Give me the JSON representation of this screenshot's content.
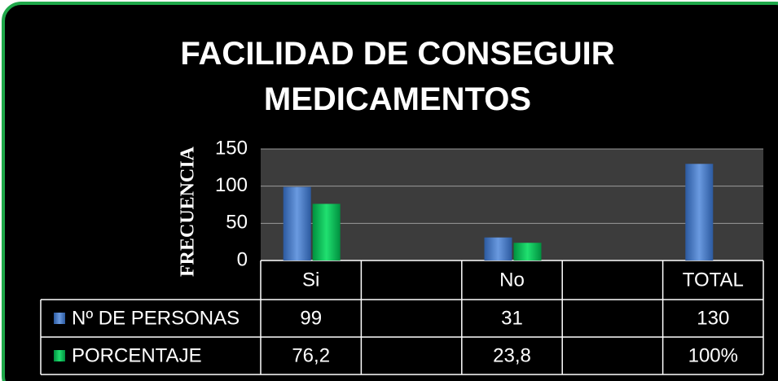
{
  "chart_data": {
    "type": "bar",
    "title": "FACILIDAD DE CONSEGUIR MEDICAMENTOS",
    "y_label": "FRECUENCIA",
    "categories": [
      "Si",
      null,
      "No",
      null,
      "TOTAL"
    ],
    "series": [
      {
        "name": "Nº DE PERSONAS",
        "color": "#4f81bd",
        "values": [
          99,
          null,
          31,
          null,
          130
        ]
      },
      {
        "name": "PORCENTAJE",
        "color": "#00b050",
        "values": [
          76.2,
          null,
          23.8,
          null,
          null
        ],
        "value_labels": [
          "76,2",
          null,
          "23,8",
          null,
          "100%"
        ]
      }
    ],
    "ylim": [
      0,
      150
    ],
    "yticks": [
      0,
      50,
      100,
      150
    ],
    "grid": true
  }
}
